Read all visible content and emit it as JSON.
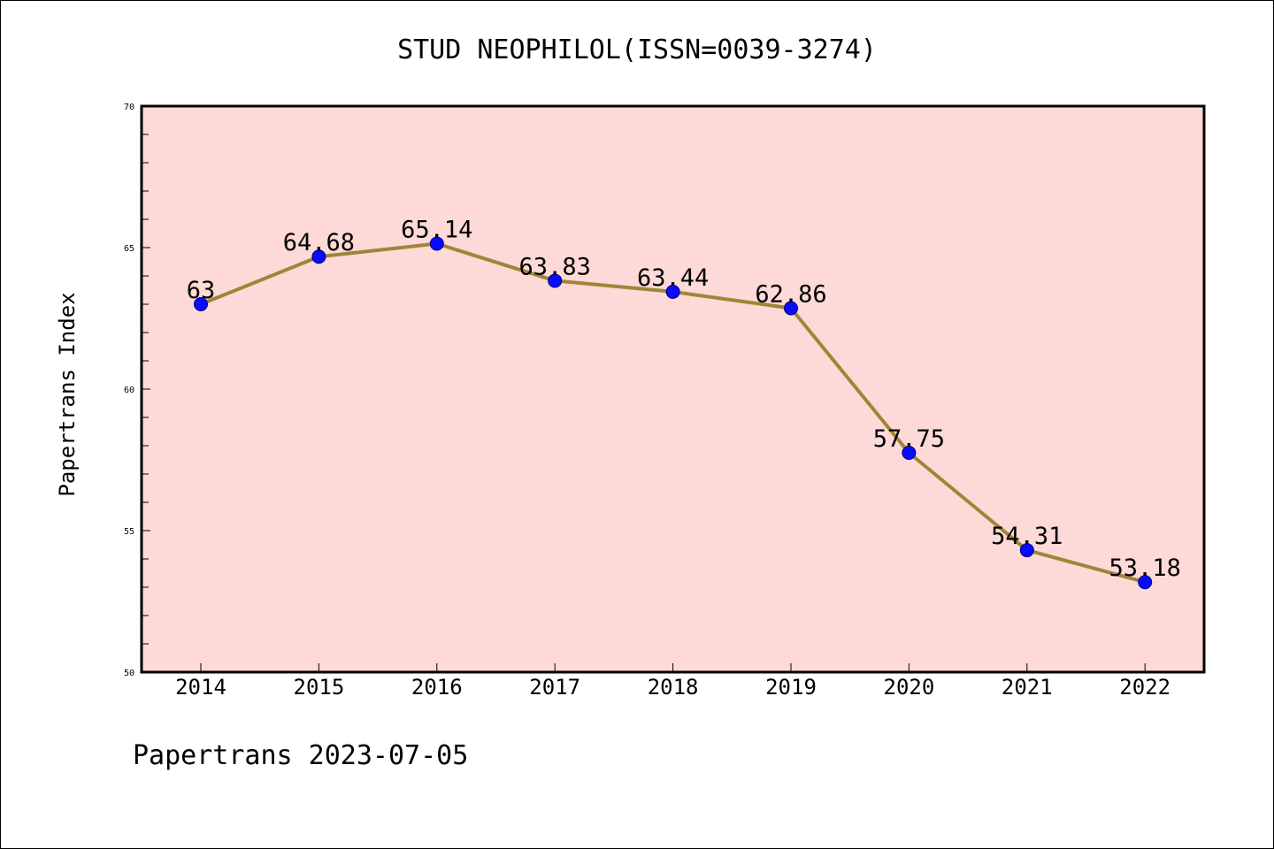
{
  "chart_data": {
    "type": "line",
    "title": "STUD NEOPHILOL(ISSN=0039-3274)",
    "xlabel": "",
    "ylabel": "Papertrans Index",
    "categories": [
      "2014",
      "2015",
      "2016",
      "2017",
      "2018",
      "2019",
      "2020",
      "2021",
      "2022"
    ],
    "values": [
      63,
      64.68,
      65.14,
      63.83,
      63.44,
      62.86,
      57.75,
      54.31,
      53.18
    ],
    "data_labels": [
      "63",
      "64.68",
      "65.14",
      "63.83",
      "63.44",
      "62.86",
      "57.75",
      "54.31",
      "53.18"
    ],
    "ylim": [
      50,
      70
    ],
    "y_ticks": [
      50,
      55,
      60,
      65,
      70
    ],
    "y_tick_labels": [
      "50",
      "55",
      "60",
      "65",
      "70"
    ],
    "y_minor_step": 1,
    "grid": false,
    "legend": "none",
    "colors": {
      "plot_background": "#fddad7",
      "line": "#a08538",
      "marker_fill": "#0a0aff",
      "marker_edge": "#000080"
    }
  },
  "footer": {
    "text": "Papertrans 2023-07-05"
  }
}
